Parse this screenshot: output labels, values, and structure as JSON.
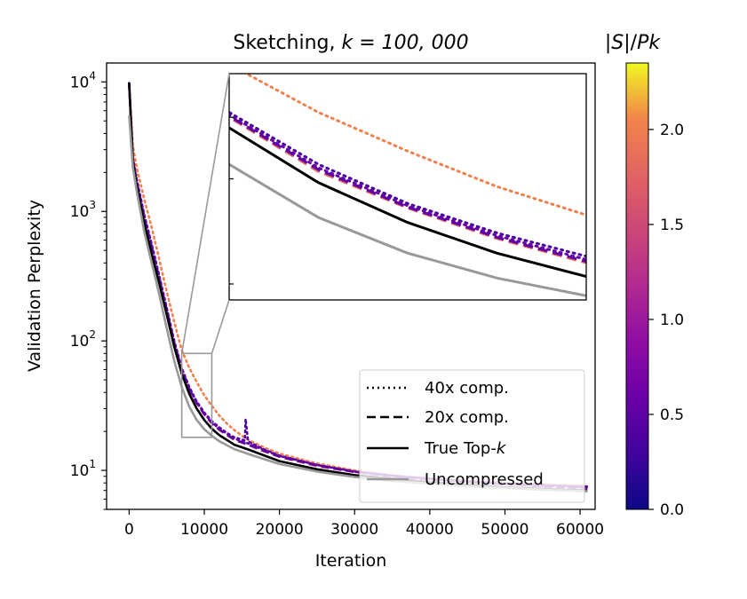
{
  "chart_data": {
    "type": "line",
    "title": "Sketching, k = 100, 000",
    "title_plain": "Sketching, ",
    "title_math": "k = 100, 000",
    "xlabel": "Iteration",
    "ylabel": "Validation Perplexity",
    "xlim": [
      -3000,
      62000
    ],
    "ylim": [
      5,
      14000
    ],
    "yscale": "log",
    "x_ticks": [
      0,
      10000,
      20000,
      30000,
      40000,
      50000,
      60000
    ],
    "x_tick_labels": [
      "0",
      "10000",
      "20000",
      "30000",
      "40000",
      "50000",
      "60000"
    ],
    "y_ticks": [
      10,
      100,
      1000,
      10000
    ],
    "y_tick_labels": [
      {
        "base": "10",
        "exp": "1"
      },
      {
        "base": "10",
        "exp": "2"
      },
      {
        "base": "10",
        "exp": "3"
      },
      {
        "base": "10",
        "exp": "4"
      }
    ],
    "colorbar": {
      "label": "|S|/Pk",
      "range": [
        0.0,
        2.35
      ],
      "ticks": [
        0.0,
        0.5,
        1.0,
        1.5,
        2.0
      ],
      "tick_labels": [
        "0.0",
        "0.5",
        "1.0",
        "1.5",
        "2.0"
      ],
      "colormap": "plasma"
    },
    "legend": {
      "placement": "lower-right",
      "entries": [
        {
          "label": "40x comp.",
          "style": "dotted",
          "color": "#000000"
        },
        {
          "label": "20x comp.",
          "style": "dashed",
          "color": "#000000"
        },
        {
          "label": "True Top-k",
          "label_plain": "True Top-",
          "label_math": "k",
          "style": "solid",
          "color": "#000000"
        },
        {
          "label": "Uncompressed",
          "style": "solid",
          "color": "#999999"
        }
      ]
    },
    "inset": {
      "zoom_region": {
        "x": [
          7000,
          11000
        ],
        "y": [
          18,
          80
        ]
      }
    },
    "series": [
      {
        "style": "dotted",
        "color": "#f0804e",
        "ratio": 2.2,
        "x": [
          0,
          500,
          1000,
          2000,
          3000,
          4000,
          5000,
          6000,
          7000,
          8000,
          9000,
          10000,
          11000,
          12000,
          13000,
          14000,
          15000,
          16000,
          18000,
          20000,
          25000,
          30000,
          35000,
          40000,
          45000,
          50000,
          55000,
          61000
        ],
        "y": [
          9500,
          3200,
          2200,
          1250,
          750,
          430,
          240,
          140,
          85,
          62,
          48,
          38,
          31.5,
          26.5,
          23,
          20.5,
          18.5,
          17,
          15,
          13.5,
          11.3,
          10,
          9.2,
          8.7,
          8.3,
          8.0,
          7.8,
          7.6
        ]
      },
      {
        "style": "dotted",
        "color": "#4b06a0",
        "ratio": 0.25,
        "x": [
          0,
          500,
          1000,
          2000,
          3000,
          4000,
          5000,
          6000,
          7000,
          8000,
          9000,
          10000,
          11000,
          12000,
          13000,
          14000,
          15000,
          15400,
          15500,
          15800,
          16000,
          18000,
          20000,
          25000,
          30000,
          35000,
          40000,
          45000,
          50000,
          55000,
          61000
        ],
        "y": [
          9800,
          2600,
          1800,
          950,
          560,
          320,
          180,
          100,
          62,
          44,
          34,
          28,
          24,
          21.5,
          19.5,
          18,
          17.3,
          17,
          25,
          17,
          16.5,
          14.5,
          13,
          11,
          9.8,
          9.1,
          8.6,
          8.2,
          7.9,
          7.7,
          7.5
        ]
      },
      {
        "style": "dotted",
        "color": "#6a00a8",
        "ratio": 0.5,
        "x": [
          0,
          500,
          1000,
          2000,
          3000,
          4000,
          5000,
          6000,
          7000,
          8000,
          9000,
          10000,
          11000,
          12000,
          14000,
          16000,
          18000,
          20000,
          25000,
          30000,
          35000,
          40000,
          45000,
          50000,
          55000,
          61000
        ],
        "y": [
          9700,
          2550,
          1750,
          930,
          550,
          315,
          177,
          98,
          61,
          43,
          33.5,
          27.5,
          23.5,
          21,
          17.6,
          16,
          14.3,
          12.9,
          11,
          9.8,
          9.1,
          8.6,
          8.2,
          7.9,
          7.6,
          7.4
        ]
      },
      {
        "style": "dashed",
        "color": "#e16462",
        "ratio": 1.2,
        "x": [
          0,
          500,
          1000,
          2000,
          3000,
          4000,
          5000,
          6000,
          7000,
          8000,
          9000,
          10000,
          11000,
          12000,
          14000,
          16000,
          18000,
          20000,
          25000,
          30000,
          35000,
          40000,
          45000,
          50000,
          55000,
          61000
        ],
        "y": [
          9600,
          2500,
          1700,
          900,
          530,
          305,
          172,
          96,
          60,
          42,
          33,
          27,
          23,
          20.5,
          17.2,
          15.6,
          14,
          12.7,
          10.8,
          9.7,
          9.0,
          8.5,
          8.1,
          7.8,
          7.5,
          7.3
        ]
      },
      {
        "style": "dashed",
        "color": "#5c01a6",
        "ratio": 0.4,
        "x": [
          0,
          500,
          1000,
          2000,
          3000,
          4000,
          5000,
          6000,
          7000,
          8000,
          9000,
          10000,
          11000,
          12000,
          14000,
          16000,
          18000,
          20000,
          25000,
          30000,
          35000,
          40000,
          45000,
          50000,
          55000,
          61000
        ],
        "y": [
          9650,
          2520,
          1720,
          910,
          535,
          307,
          173,
          96.5,
          60.5,
          42.5,
          33.2,
          27.2,
          23.2,
          20.7,
          17.3,
          15.7,
          14.1,
          12.8,
          10.9,
          9.75,
          9.05,
          8.55,
          8.15,
          7.85,
          7.55,
          7.35
        ]
      },
      {
        "style": "solid",
        "color": "#000000",
        "ratio": null,
        "x": [
          0,
          500,
          1000,
          2000,
          3000,
          4000,
          5000,
          6000,
          7000,
          8000,
          9000,
          10000,
          11000,
          12000,
          14000,
          16000,
          18000,
          20000,
          25000,
          30000,
          35000,
          40000,
          45000,
          50000,
          55000,
          61000
        ],
        "y": [
          9900,
          2400,
          1600,
          820,
          470,
          280,
          160,
          90,
          56,
          39,
          30,
          24.5,
          21,
          18.7,
          15.8,
          14.4,
          13,
          11.8,
          10.2,
          9.2,
          8.6,
          8.1,
          7.7,
          7.4,
          7.2,
          7.0
        ]
      },
      {
        "style": "solid",
        "color": "#999999",
        "ratio": null,
        "x": [
          0,
          500,
          1000,
          2000,
          3000,
          4000,
          5000,
          6000,
          7000,
          8000,
          9000,
          10000,
          11000,
          12000,
          14000,
          16000,
          18000,
          20000,
          25000,
          30000,
          35000,
          40000,
          45000,
          50000,
          55000,
          61000
        ],
        "y": [
          5500,
          2200,
          1450,
          700,
          400,
          230,
          125,
          70,
          44,
          31,
          24.5,
          20.8,
          18.5,
          16.8,
          14.6,
          13.3,
          12.2,
          11.2,
          9.8,
          8.9,
          8.3,
          7.9,
          7.5,
          7.3,
          7.1,
          6.9
        ]
      }
    ]
  }
}
